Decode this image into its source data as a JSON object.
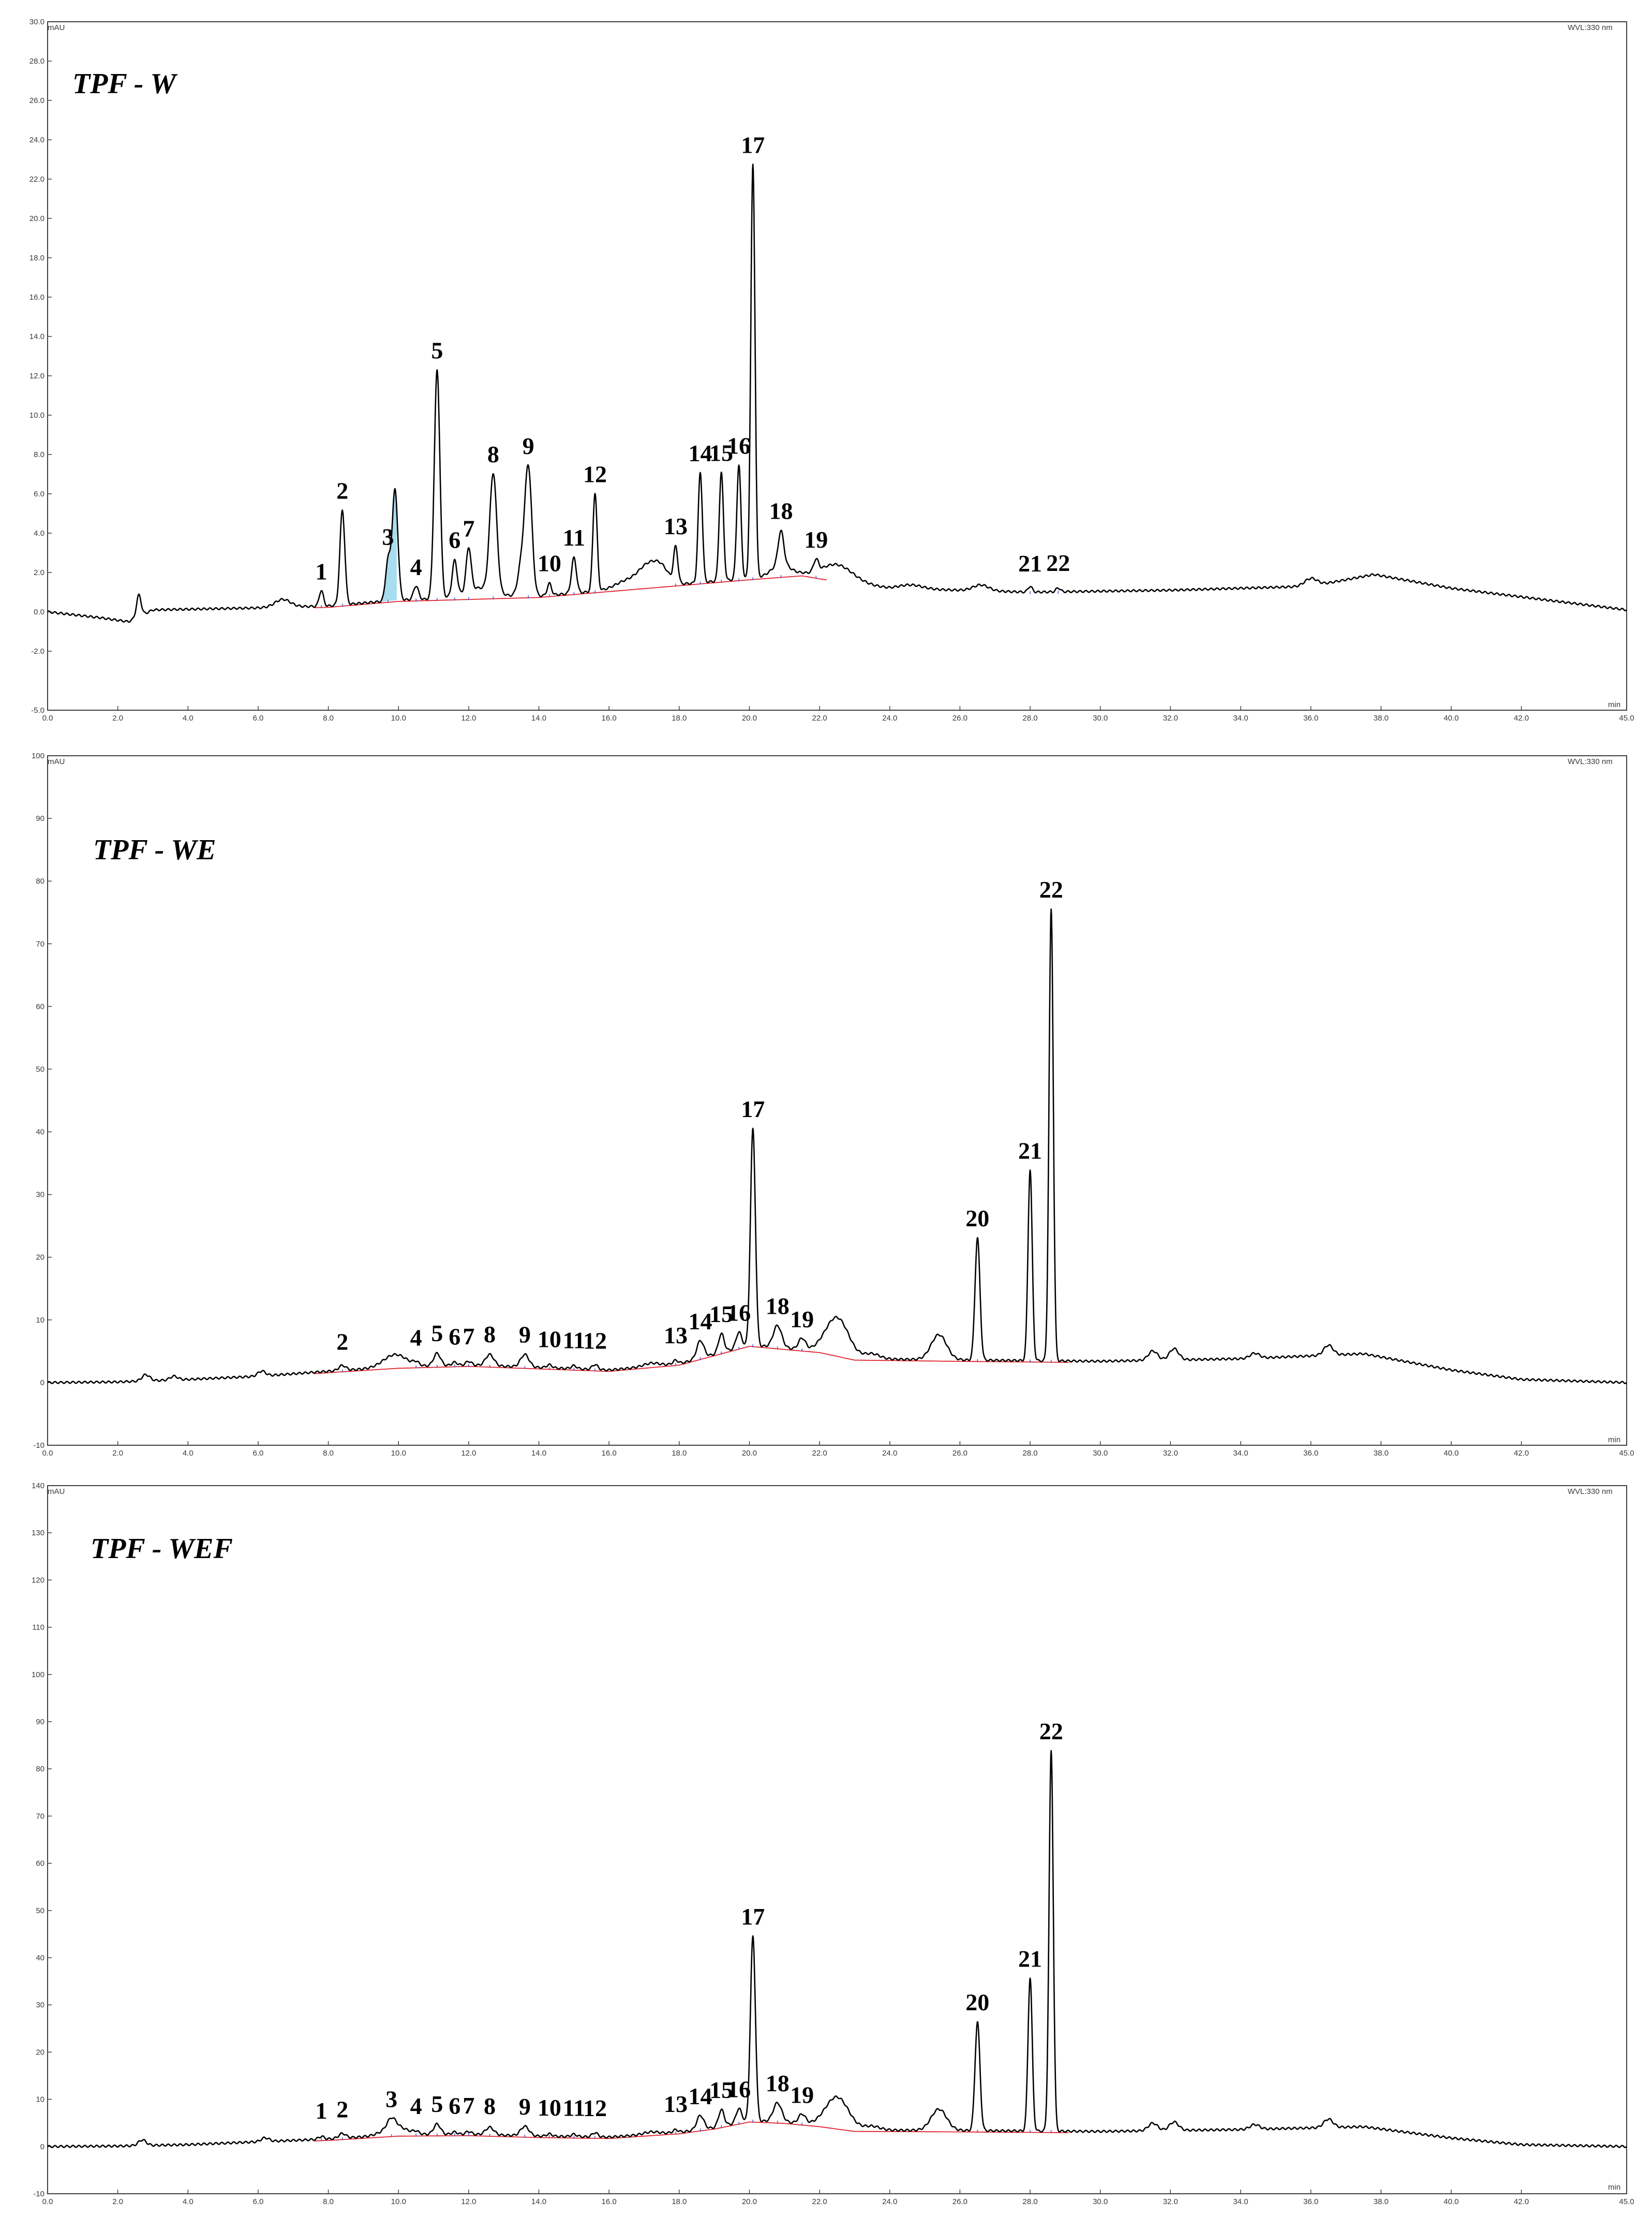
{
  "chart_data": [
    {
      "type": "line",
      "title": "TPF - W",
      "ylabel": "mAU",
      "xlabel": "min",
      "channel": "WVL:330 nm",
      "xlim": [
        0,
        45
      ],
      "ylim": [
        -5,
        30
      ],
      "x_ticks": [
        "0.0",
        "2.0",
        "4.0",
        "6.0",
        "8.0",
        "10.0",
        "12.0",
        "14.0",
        "16.0",
        "18.0",
        "20.0",
        "22.0",
        "24.0",
        "26.0",
        "28.0",
        "30.0",
        "32.0",
        "34.0",
        "36.0",
        "38.0",
        "40.0",
        "42.0",
        "45.0"
      ],
      "y_ticks": [
        "-5.0",
        "-2.0",
        "0.0",
        "2.0",
        "4.0",
        "6.0",
        "8.0",
        "10.0",
        "12.0",
        "14.0",
        "16.0",
        "18.0",
        "20.0",
        "22.0",
        "24.0",
        "26.0",
        "28.0",
        "30.0"
      ],
      "base": [
        [
          0,
          0
        ],
        [
          1.5,
          -0.3
        ],
        [
          2.3,
          -0.5
        ],
        [
          3,
          0.1
        ],
        [
          6,
          0.2
        ],
        [
          8,
          0.3
        ],
        [
          10,
          0.6
        ],
        [
          14,
          0.8
        ],
        [
          16,
          1.1
        ],
        [
          18,
          1.4
        ],
        [
          20,
          1.7
        ],
        [
          21.5,
          1.9
        ],
        [
          22.5,
          1.6
        ],
        [
          24,
          1.2
        ],
        [
          28,
          1.0
        ],
        [
          32,
          1.1
        ],
        [
          36,
          1.3
        ],
        [
          37.8,
          1.9
        ],
        [
          40,
          1.2
        ],
        [
          45,
          0.1
        ]
      ],
      "bumps": [
        [
          2.6,
          1.1,
          0.03
        ],
        [
          6.7,
          0.4,
          0.1
        ],
        [
          12.3,
          0.5,
          0.2
        ],
        [
          16.5,
          0.4,
          0.15
        ],
        [
          17.1,
          1.0,
          0.12
        ],
        [
          17.5,
          0.8,
          0.1
        ],
        [
          20.9,
          0.6,
          0.12
        ],
        [
          22.5,
          0.8,
          0.2
        ],
        [
          24.6,
          0.2,
          0.15
        ],
        [
          26.6,
          0.3,
          0.1
        ],
        [
          36,
          0.4,
          0.08
        ]
      ],
      "peaks": [
        {
          "label": "1",
          "rt": 7.8,
          "h": 0.8,
          "w": 0.06
        },
        {
          "label": "2",
          "rt": 8.4,
          "h": 4.8,
          "w": 0.07
        },
        {
          "label": "3",
          "rt": 9.7,
          "h": 2.0,
          "w": 0.07
        },
        {
          "label": "4",
          "rt": 10.5,
          "h": 0.7,
          "w": 0.07
        },
        {
          "label": "5",
          "rt": 11.1,
          "h": 11.6,
          "w": 0.08
        },
        {
          "label": "6",
          "rt": 11.6,
          "h": 1.8,
          "w": 0.07
        },
        {
          "label": "7",
          "rt": 12.0,
          "h": 2.2,
          "w": 0.07
        },
        {
          "label": "8",
          "rt": 12.7,
          "h": 6.0,
          "w": 0.1
        },
        {
          "label": "9",
          "rt": 13.7,
          "h": 6.5,
          "w": 0.1
        },
        {
          "label": "10",
          "rt": 14.3,
          "h": 0.6,
          "w": 0.06
        },
        {
          "label": "11",
          "rt": 15.0,
          "h": 1.8,
          "w": 0.07
        },
        {
          "label": "12",
          "rt": 15.6,
          "h": 5.0,
          "w": 0.06
        },
        {
          "label": "13",
          "rt": 17.9,
          "h": 1.8,
          "w": 0.06
        },
        {
          "label": "14",
          "rt": 18.6,
          "h": 5.6,
          "w": 0.06
        },
        {
          "label": "15",
          "rt": 19.2,
          "h": 5.5,
          "w": 0.06
        },
        {
          "label": "16",
          "rt": 19.7,
          "h": 5.8,
          "w": 0.06
        },
        {
          "label": "17",
          "rt": 20.1,
          "h": 21.0,
          "w": 0.06
        },
        {
          "label": "18",
          "rt": 20.9,
          "h": 1.7,
          "w": 0.08
        },
        {
          "label": "19",
          "rt": 21.9,
          "h": 0.6,
          "w": 0.07
        },
        {
          "label": "21",
          "rt": 28.0,
          "h": 0.3,
          "w": 0.06
        },
        {
          "label": "22",
          "rt": 28.8,
          "h": 0.2,
          "w": 0.06
        }
      ],
      "extra_peaks": [
        [
          9.9,
          5.6,
          0.08
        ],
        [
          13.5,
          1.5,
          0.1
        ]
      ]
    },
    {
      "type": "line",
      "title": "TPF - WE",
      "ylabel": "mAU",
      "xlabel": "min",
      "channel": "WVL:330 nm",
      "xlim": [
        0,
        45
      ],
      "ylim": [
        -10,
        100
      ],
      "x_ticks": [
        "0.0",
        "2.0",
        "4.0",
        "6.0",
        "8.0",
        "10.0",
        "12.0",
        "14.0",
        "16.0",
        "18.0",
        "20.0",
        "22.0",
        "24.0",
        "26.0",
        "28.0",
        "30.0",
        "32.0",
        "34.0",
        "36.0",
        "38.0",
        "40.0",
        "42.0",
        "45.0"
      ],
      "y_ticks": [
        "-10",
        "0",
        "10",
        "20",
        "30",
        "40",
        "50",
        "60",
        "70",
        "80",
        "90",
        "100"
      ],
      "base": [
        [
          0,
          0
        ],
        [
          2,
          0.1
        ],
        [
          4,
          0.5
        ],
        [
          6,
          1.0
        ],
        [
          8,
          1.8
        ],
        [
          10,
          2.5
        ],
        [
          12,
          2.8
        ],
        [
          14,
          2.4
        ],
        [
          16,
          2.0
        ],
        [
          18,
          3.0
        ],
        [
          19,
          4.5
        ],
        [
          20,
          6.0
        ],
        [
          21,
          5.5
        ],
        [
          22,
          5.0
        ],
        [
          23,
          3.8
        ],
        [
          26,
          3.6
        ],
        [
          30,
          3.4
        ],
        [
          34,
          3.8
        ],
        [
          37.5,
          4.6
        ],
        [
          40,
          2.0
        ],
        [
          42,
          0.5
        ],
        [
          45,
          0
        ]
      ],
      "bumps": [
        [
          2.8,
          1.0,
          0.05
        ],
        [
          3.6,
          0.6,
          0.05
        ],
        [
          6.1,
          0.8,
          0.05
        ],
        [
          9.9,
          2.0,
          0.15
        ],
        [
          17.2,
          0.5,
          0.1
        ],
        [
          22.5,
          6.0,
          0.15
        ],
        [
          23.5,
          0.8,
          0.1
        ],
        [
          25.4,
          4.0,
          0.1
        ],
        [
          31.5,
          1.5,
          0.06
        ],
        [
          32.1,
          1.8,
          0.06
        ],
        [
          34.4,
          0.8,
          0.06
        ],
        [
          36.5,
          1.6,
          0.06
        ]
      ],
      "peaks": [
        {
          "label": "2",
          "rt": 8.4,
          "h": 0.8,
          "w": 0.1
        },
        {
          "label": "4",
          "rt": 10.5,
          "h": 0.5,
          "w": 0.08
        },
        {
          "label": "5",
          "rt": 11.1,
          "h": 2.0,
          "w": 0.1
        },
        {
          "label": "6",
          "rt": 11.6,
          "h": 0.5,
          "w": 0.08
        },
        {
          "label": "7",
          "rt": 12.0,
          "h": 0.6,
          "w": 0.08
        },
        {
          "label": "8",
          "rt": 12.6,
          "h": 1.8,
          "w": 0.12
        },
        {
          "label": "9",
          "rt": 13.6,
          "h": 2.0,
          "w": 0.12
        },
        {
          "label": "10",
          "rt": 14.3,
          "h": 0.5,
          "w": 0.08
        },
        {
          "label": "11",
          "rt": 15.0,
          "h": 0.5,
          "w": 0.08
        },
        {
          "label": "12",
          "rt": 15.6,
          "h": 0.8,
          "w": 0.08
        },
        {
          "label": "13",
          "rt": 17.9,
          "h": 0.6,
          "w": 0.08
        },
        {
          "label": "14",
          "rt": 18.6,
          "h": 2.8,
          "w": 0.1
        },
        {
          "label": "15",
          "rt": 19.2,
          "h": 3.0,
          "w": 0.08
        },
        {
          "label": "16",
          "rt": 19.7,
          "h": 2.5,
          "w": 0.08
        },
        {
          "label": "17",
          "rt": 20.1,
          "h": 34.5,
          "w": 0.07
        },
        {
          "label": "18",
          "rt": 20.8,
          "h": 3.5,
          "w": 0.12
        },
        {
          "label": "19",
          "rt": 21.5,
          "h": 1.8,
          "w": 0.1
        },
        {
          "label": "20",
          "rt": 26.5,
          "h": 19.5,
          "w": 0.07
        },
        {
          "label": "21",
          "rt": 28.0,
          "h": 30.5,
          "w": 0.06
        },
        {
          "label": "22",
          "rt": 28.6,
          "h": 72.0,
          "w": 0.06
        }
      ],
      "extra_peaks": []
    },
    {
      "type": "line",
      "title": "TPF - WEF",
      "ylabel": "mAU",
      "xlabel": "min",
      "channel": "WVL:330 nm",
      "xlim": [
        0,
        45
      ],
      "ylim": [
        -10,
        140
      ],
      "x_ticks": [
        "0.0",
        "2.0",
        "4.0",
        "6.0",
        "8.0",
        "10.0",
        "12.0",
        "14.0",
        "16.0",
        "18.0",
        "20.0",
        "22.0",
        "24.0",
        "26.0",
        "28.0",
        "30.0",
        "32.0",
        "34.0",
        "36.0",
        "38.0",
        "40.0",
        "42.0",
        "45.0"
      ],
      "y_ticks": [
        "-10",
        "0",
        "10",
        "20",
        "30",
        "40",
        "50",
        "60",
        "70",
        "80",
        "90",
        "100",
        "110",
        "120",
        "130",
        "140"
      ],
      "base": [
        [
          0,
          0
        ],
        [
          2,
          0.1
        ],
        [
          4,
          0.4
        ],
        [
          6,
          1.0
        ],
        [
          8,
          1.6
        ],
        [
          10,
          2.5
        ],
        [
          12,
          2.6
        ],
        [
          14,
          2.2
        ],
        [
          16,
          2.0
        ],
        [
          18,
          3.0
        ],
        [
          19,
          4.0
        ],
        [
          20,
          5.5
        ],
        [
          21,
          5.2
        ],
        [
          22,
          4.5
        ],
        [
          23,
          3.5
        ],
        [
          26,
          3.4
        ],
        [
          30,
          3.2
        ],
        [
          34,
          3.6
        ],
        [
          37.5,
          4.2
        ],
        [
          40,
          1.8
        ],
        [
          42,
          0.4
        ],
        [
          45,
          0
        ]
      ],
      "bumps": [
        [
          2.7,
          1.2,
          0.05
        ],
        [
          6.2,
          0.8,
          0.05
        ],
        [
          9.9,
          1.8,
          0.15
        ],
        [
          17.2,
          0.5,
          0.1
        ],
        [
          22.5,
          6.5,
          0.15
        ],
        [
          23.5,
          0.8,
          0.1
        ],
        [
          25.4,
          4.5,
          0.1
        ],
        [
          31.5,
          1.6,
          0.06
        ],
        [
          32.1,
          1.8,
          0.06
        ],
        [
          34.4,
          1.0,
          0.06
        ],
        [
          36.5,
          1.8,
          0.06
        ]
      ],
      "peaks": [
        {
          "label": "1",
          "rt": 7.8,
          "h": 0.6,
          "w": 0.08
        },
        {
          "label": "2",
          "rt": 8.4,
          "h": 1.0,
          "w": 0.1
        },
        {
          "label": "3",
          "rt": 9.8,
          "h": 2.0,
          "w": 0.12
        },
        {
          "label": "4",
          "rt": 10.5,
          "h": 0.5,
          "w": 0.08
        },
        {
          "label": "5",
          "rt": 11.1,
          "h": 2.2,
          "w": 0.1
        },
        {
          "label": "6",
          "rt": 11.6,
          "h": 0.5,
          "w": 0.08
        },
        {
          "label": "7",
          "rt": 12.0,
          "h": 0.6,
          "w": 0.08
        },
        {
          "label": "8",
          "rt": 12.6,
          "h": 1.6,
          "w": 0.12
        },
        {
          "label": "9",
          "rt": 13.6,
          "h": 2.0,
          "w": 0.12
        },
        {
          "label": "10",
          "rt": 14.3,
          "h": 0.5,
          "w": 0.08
        },
        {
          "label": "11",
          "rt": 15.0,
          "h": 0.5,
          "w": 0.08
        },
        {
          "label": "12",
          "rt": 15.6,
          "h": 0.9,
          "w": 0.08
        },
        {
          "label": "13",
          "rt": 17.9,
          "h": 0.6,
          "w": 0.08
        },
        {
          "label": "14",
          "rt": 18.6,
          "h": 3.0,
          "w": 0.1
        },
        {
          "label": "15",
          "rt": 19.2,
          "h": 3.5,
          "w": 0.08
        },
        {
          "label": "16",
          "rt": 19.7,
          "h": 3.0,
          "w": 0.08
        },
        {
          "label": "17",
          "rt": 20.1,
          "h": 39.0,
          "w": 0.07
        },
        {
          "label": "18",
          "rt": 20.8,
          "h": 4.0,
          "w": 0.12
        },
        {
          "label": "19",
          "rt": 21.5,
          "h": 2.0,
          "w": 0.1
        },
        {
          "label": "20",
          "rt": 26.5,
          "h": 23.0,
          "w": 0.07
        },
        {
          "label": "21",
          "rt": 28.0,
          "h": 32.5,
          "w": 0.06
        },
        {
          "label": "22",
          "rt": 28.6,
          "h": 80.5,
          "w": 0.06
        }
      ],
      "extra_peaks": []
    }
  ],
  "colors": {
    "trace": "#000000",
    "baseline": "#e0202a",
    "fill_highlight": "#a8dcef"
  }
}
